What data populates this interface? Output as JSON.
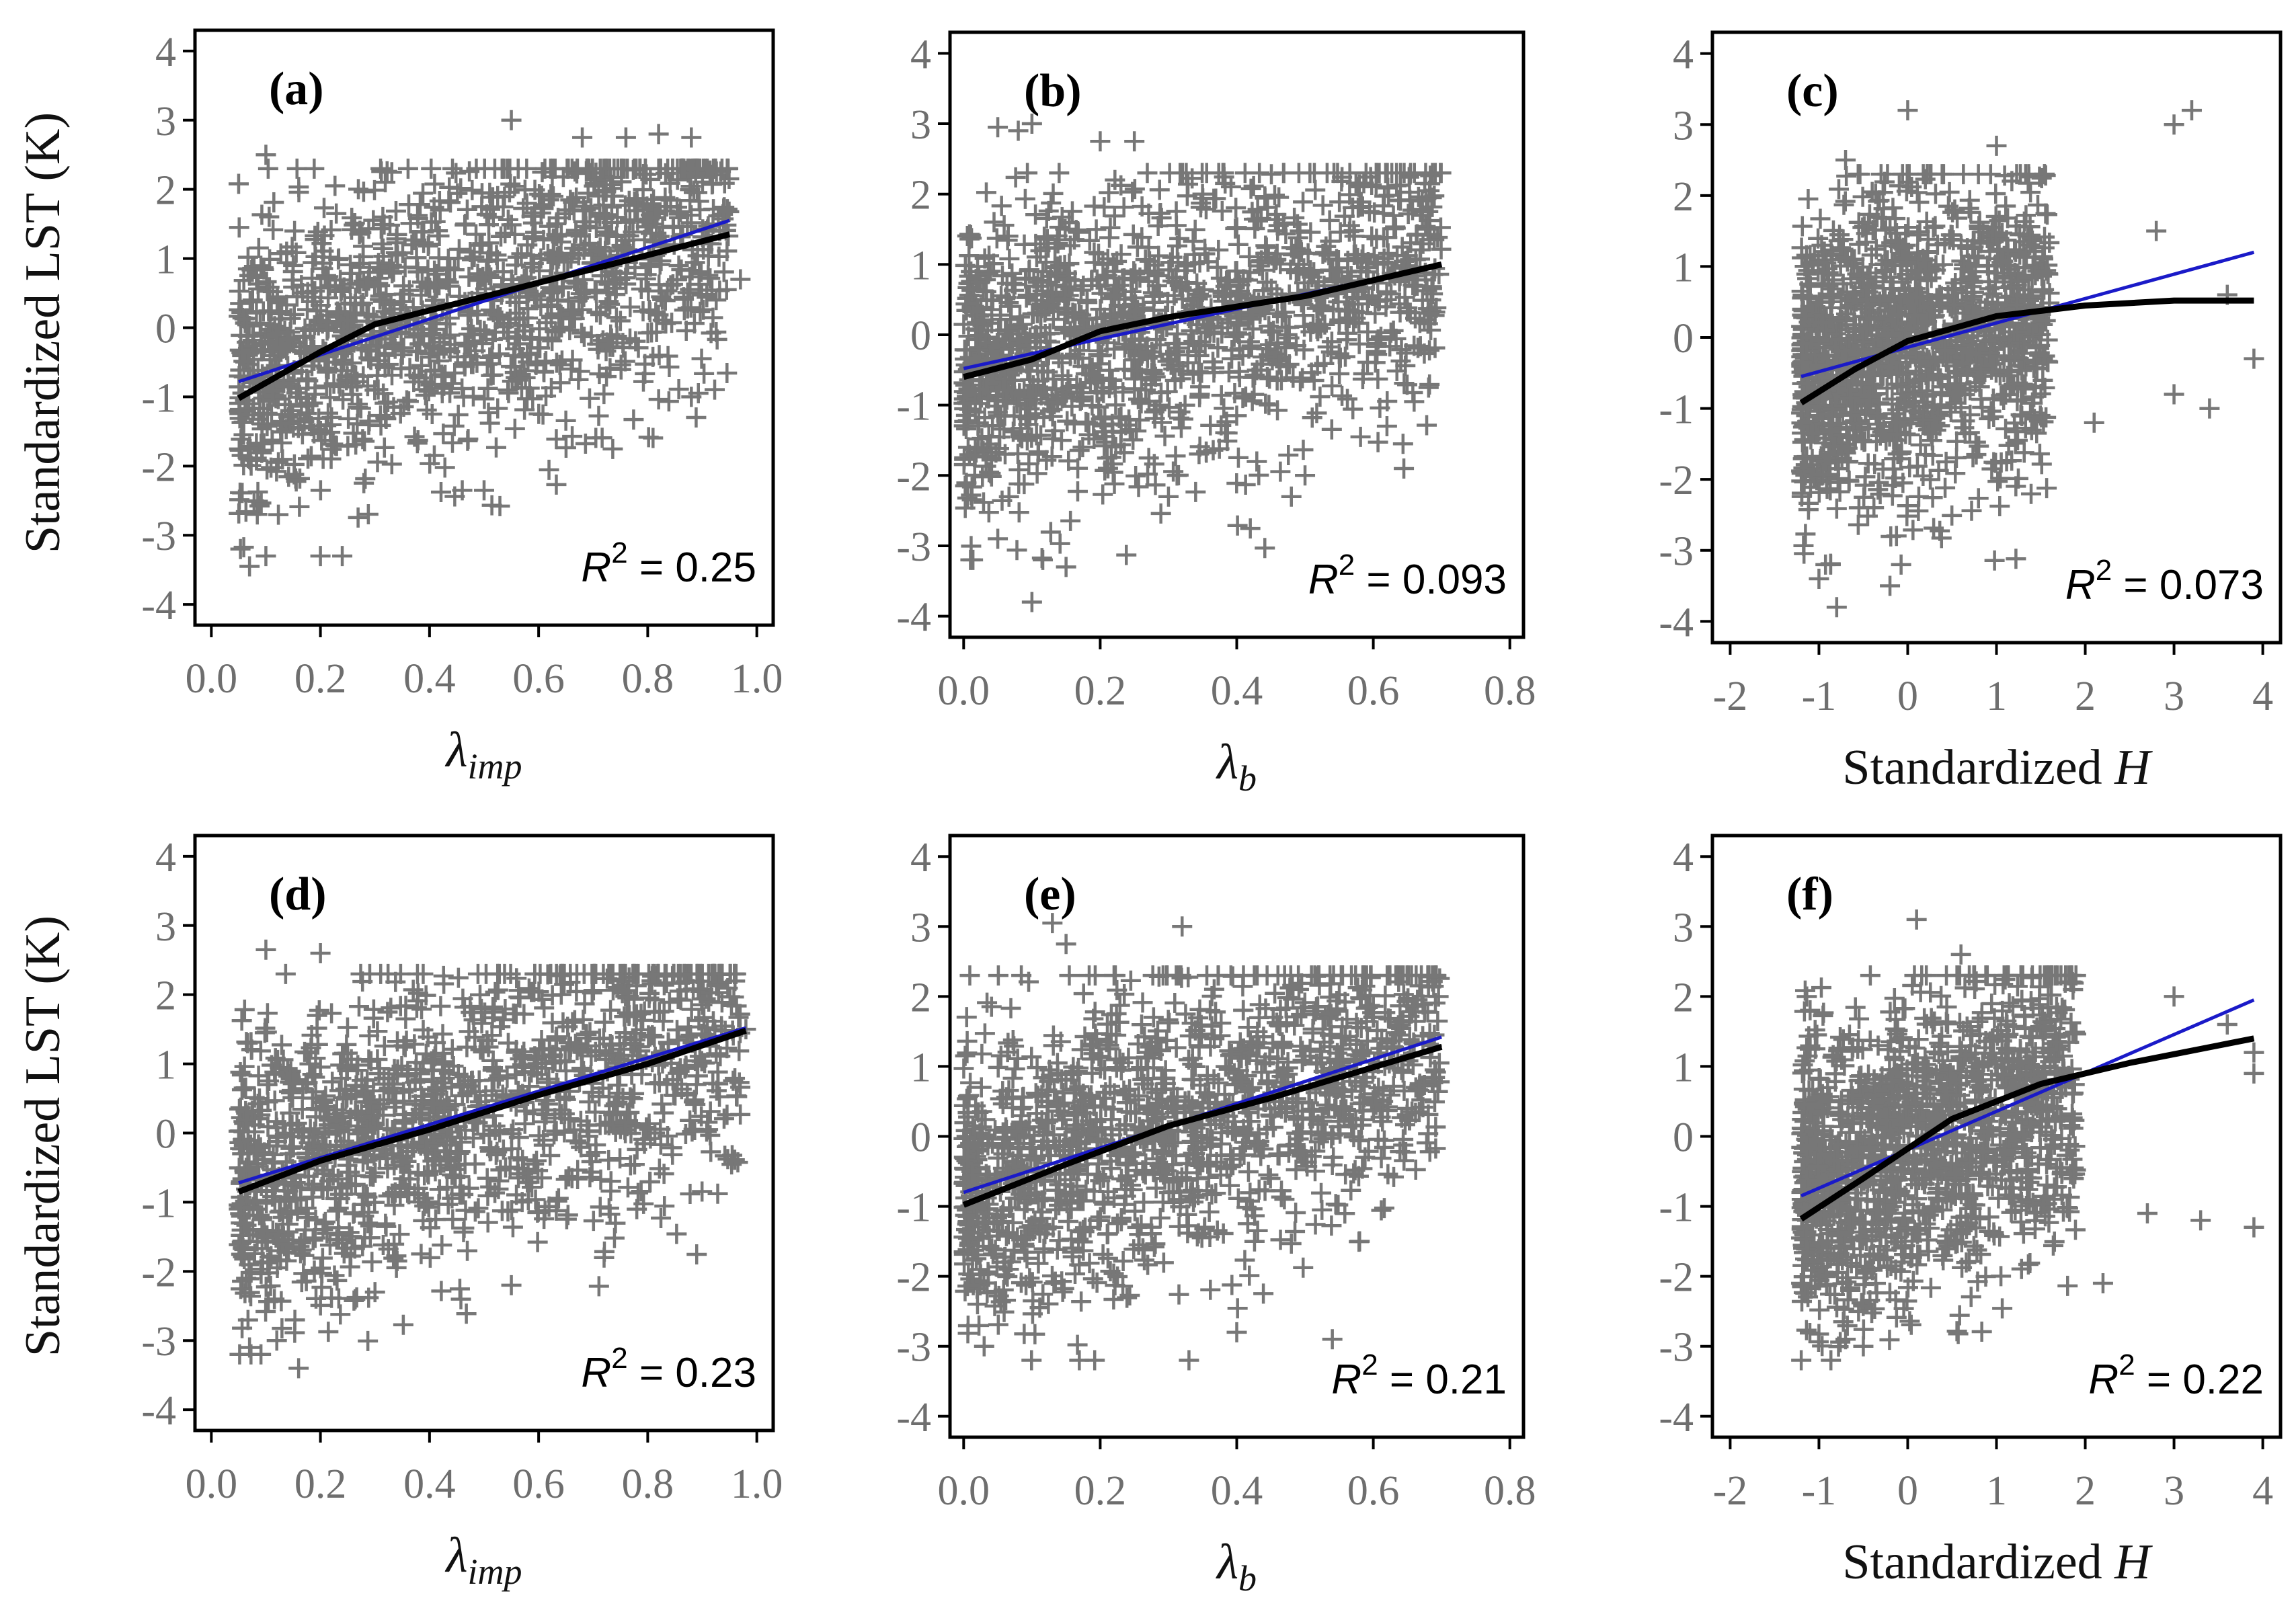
{
  "figure": {
    "ylabel_shared": "Standardized LST (K)",
    "colors": {
      "points": "#777777",
      "linear_fit": "#1a1ac8",
      "smooth_fit": "#000000",
      "axes": "#000000",
      "tick_text": "#6e6e6e"
    }
  },
  "chart_data": [
    {
      "panel": "(a)",
      "type": "scatter",
      "xlabel": "λimp",
      "ylabel": "Standardized LST (K)",
      "xlim": [
        -0.03,
        1.03
      ],
      "ylim": [
        -4.3,
        4.3
      ],
      "xticks": [
        "0.0",
        "0.2",
        "0.4",
        "0.6",
        "0.8",
        "1.0"
      ],
      "xtick_values": [
        0.0,
        0.2,
        0.4,
        0.6,
        0.8,
        1.0
      ],
      "yticks": [
        "-4",
        "-3",
        "-2",
        "-1",
        "0",
        "1",
        "2",
        "3",
        "4"
      ],
      "r2_label": "= 0.25",
      "r2": 0.25,
      "linear_fit": [
        [
          0.05,
          -0.78
        ],
        [
          0.95,
          1.55
        ]
      ],
      "smooth_fit": [
        [
          0.05,
          -1.02
        ],
        [
          0.2,
          -0.35
        ],
        [
          0.3,
          0.05
        ],
        [
          0.5,
          0.45
        ],
        [
          0.7,
          0.85
        ],
        [
          0.95,
          1.35
        ]
      ],
      "cloud": {
        "x_range": [
          0.05,
          0.95
        ],
        "y_spread": 1.05
      },
      "outliers": [
        [
          0.55,
          3.0
        ],
        [
          0.76,
          2.75
        ],
        [
          0.82,
          2.8
        ],
        [
          0.88,
          2.75
        ],
        [
          0.68,
          2.75
        ],
        [
          0.1,
          2.5
        ],
        [
          0.07,
          -3.45
        ],
        [
          0.1,
          -3.3
        ],
        [
          0.2,
          -3.3
        ],
        [
          0.24,
          -3.3
        ],
        [
          0.46,
          -2.35
        ],
        [
          0.5,
          -2.35
        ],
        [
          0.97,
          0.7
        ],
        [
          0.88,
          -1.0
        ]
      ]
    },
    {
      "panel": "(b)",
      "type": "scatter",
      "xlabel": "λb",
      "ylabel": "",
      "xlim": [
        -0.02,
        0.82
      ],
      "ylim": [
        -4.3,
        4.3
      ],
      "xticks": [
        "0.0",
        "0.2",
        "0.4",
        "0.6",
        "0.8"
      ],
      "xtick_values": [
        0.0,
        0.2,
        0.4,
        0.6,
        0.8
      ],
      "yticks": [
        "-4",
        "-3",
        "-2",
        "-1",
        "0",
        "1",
        "2",
        "3",
        "4"
      ],
      "r2_label": "= 0.093",
      "r2": 0.093,
      "linear_fit": [
        [
          0.0,
          -0.48
        ],
        [
          0.7,
          1.0
        ]
      ],
      "smooth_fit": [
        [
          0.0,
          -0.6
        ],
        [
          0.1,
          -0.35
        ],
        [
          0.2,
          0.05
        ],
        [
          0.3,
          0.25
        ],
        [
          0.5,
          0.55
        ],
        [
          0.7,
          1.0
        ]
      ],
      "cloud": {
        "x_range": [
          0.0,
          0.7
        ],
        "y_spread": 1.05
      },
      "outliers": [
        [
          0.05,
          2.95
        ],
        [
          0.08,
          2.9
        ],
        [
          0.1,
          3.0
        ],
        [
          0.2,
          2.75
        ],
        [
          0.25,
          2.75
        ],
        [
          0.1,
          -3.8
        ],
        [
          0.15,
          -3.3
        ],
        [
          0.05,
          -2.9
        ],
        [
          0.62,
          -1.3
        ],
        [
          0.5,
          -2.0
        ],
        [
          0.48,
          -2.3
        ],
        [
          0.68,
          1.5
        ],
        [
          0.3,
          -2.3
        ]
      ]
    },
    {
      "panel": "(c)",
      "type": "scatter",
      "xlabel": "Standardized H",
      "ylabel": "",
      "xlim": [
        -2.2,
        4.2
      ],
      "ylim": [
        -4.3,
        4.3
      ],
      "xticks": [
        "-2",
        "-1",
        "0",
        "1",
        "2",
        "3",
        "4"
      ],
      "xtick_values": [
        -2,
        -1,
        0,
        1,
        2,
        3,
        4
      ],
      "yticks": [
        "-4",
        "-3",
        "-2",
        "-1",
        "0",
        "1",
        "2",
        "3",
        "4"
      ],
      "r2_label": "= 0.073",
      "r2": 0.073,
      "linear_fit": [
        [
          -1.2,
          -0.55
        ],
        [
          3.9,
          1.2
        ]
      ],
      "smooth_fit": [
        [
          -1.2,
          -0.92
        ],
        [
          -0.6,
          -0.45
        ],
        [
          0.0,
          -0.05
        ],
        [
          1.0,
          0.3
        ],
        [
          2.0,
          0.45
        ],
        [
          3.0,
          0.52
        ],
        [
          3.9,
          0.52
        ]
      ],
      "cloud": {
        "x_range": [
          -1.2,
          1.6
        ],
        "y_spread": 1.1
      },
      "outliers": [
        [
          3.0,
          3.0
        ],
        [
          3.2,
          3.2
        ],
        [
          0.0,
          3.2
        ],
        [
          -0.7,
          2.5
        ],
        [
          1.0,
          2.7
        ],
        [
          -0.2,
          -3.5
        ],
        [
          -0.8,
          -3.8
        ],
        [
          -1.0,
          -3.4
        ],
        [
          3.0,
          -0.8
        ],
        [
          3.4,
          -1.0
        ],
        [
          3.9,
          -0.3
        ],
        [
          2.8,
          1.5
        ],
        [
          3.6,
          0.6
        ],
        [
          2.1,
          -1.2
        ]
      ]
    },
    {
      "panel": "(d)",
      "type": "scatter",
      "xlabel": "λimp",
      "ylabel": "Standardized LST (K)",
      "xlim": [
        -0.03,
        1.03
      ],
      "ylim": [
        -4.3,
        4.3
      ],
      "xticks": [
        "0.0",
        "0.2",
        "0.4",
        "0.6",
        "0.8",
        "1.0"
      ],
      "xtick_values": [
        0.0,
        0.2,
        0.4,
        0.6,
        0.8,
        1.0
      ],
      "yticks": [
        "-4",
        "-3",
        "-2",
        "-1",
        "0",
        "1",
        "2",
        "3",
        "4"
      ],
      "r2_label": "= 0.23",
      "r2": 0.23,
      "linear_fit": [
        [
          0.05,
          -0.72
        ],
        [
          0.98,
          1.52
        ]
      ],
      "smooth_fit": [
        [
          0.05,
          -0.85
        ],
        [
          0.2,
          -0.4
        ],
        [
          0.4,
          0.05
        ],
        [
          0.6,
          0.55
        ],
        [
          0.8,
          1.0
        ],
        [
          0.98,
          1.48
        ]
      ],
      "cloud": {
        "x_range": [
          0.05,
          0.97
        ],
        "y_spread": 1.05
      },
      "outliers": [
        [
          0.1,
          2.65
        ],
        [
          0.2,
          2.6
        ],
        [
          0.16,
          -3.4
        ],
        [
          0.07,
          -3.1
        ],
        [
          0.12,
          -3.0
        ],
        [
          0.3,
          -2.3
        ],
        [
          0.55,
          -2.2
        ],
        [
          0.72,
          -1.8
        ],
        [
          0.78,
          -1.1
        ],
        [
          0.86,
          2.3
        ],
        [
          0.98,
          1.5
        ]
      ]
    },
    {
      "panel": "(e)",
      "type": "scatter",
      "xlabel": "λb",
      "ylabel": "",
      "xlim": [
        -0.02,
        0.82
      ],
      "ylim": [
        -4.3,
        4.3
      ],
      "xticks": [
        "0.0",
        "0.2",
        "0.4",
        "0.6",
        "0.8"
      ],
      "xtick_values": [
        0.0,
        0.2,
        0.4,
        0.6,
        0.8
      ],
      "yticks": [
        "-4",
        "-3",
        "-2",
        "-1",
        "0",
        "1",
        "2",
        "3",
        "4"
      ],
      "r2_label": "= 0.21",
      "r2": 0.21,
      "linear_fit": [
        [
          0.0,
          -0.8
        ],
        [
          0.7,
          1.42
        ]
      ],
      "smooth_fit": [
        [
          0.0,
          -0.98
        ],
        [
          0.15,
          -0.4
        ],
        [
          0.3,
          0.15
        ],
        [
          0.45,
          0.55
        ],
        [
          0.7,
          1.28
        ]
      ],
      "cloud": {
        "x_range": [
          0.0,
          0.7
        ],
        "y_spread": 1.05
      },
      "outliers": [
        [
          0.13,
          3.05
        ],
        [
          0.32,
          3.0
        ],
        [
          0.15,
          2.75
        ],
        [
          0.4,
          -2.8
        ],
        [
          0.54,
          -2.9
        ],
        [
          0.33,
          -3.2
        ],
        [
          0.58,
          -1.5
        ],
        [
          0.69,
          0.95
        ],
        [
          0.03,
          -3.0
        ],
        [
          0.6,
          1.7
        ]
      ]
    },
    {
      "panel": "(f)",
      "type": "scatter",
      "xlabel": "Standardized H",
      "ylabel": "",
      "xlim": [
        -2.2,
        4.2
      ],
      "ylim": [
        -4.3,
        4.3
      ],
      "xticks": [
        "-2",
        "-1",
        "0",
        "1",
        "2",
        "3",
        "4"
      ],
      "xtick_values": [
        -2,
        -1,
        0,
        1,
        2,
        3,
        4
      ],
      "yticks": [
        "-4",
        "-3",
        "-2",
        "-1",
        "0",
        "1",
        "2",
        "3",
        "4"
      ],
      "r2_label": "= 0.22",
      "r2": 0.22,
      "linear_fit": [
        [
          -1.2,
          -0.85
        ],
        [
          3.9,
          1.95
        ]
      ],
      "smooth_fit": [
        [
          -1.2,
          -1.18
        ],
        [
          -0.5,
          -0.6
        ],
        [
          0.5,
          0.25
        ],
        [
          1.5,
          0.75
        ],
        [
          2.5,
          1.05
        ],
        [
          3.9,
          1.4
        ]
      ],
      "cloud": {
        "x_range": [
          -1.2,
          1.9
        ],
        "y_spread": 1.05
      },
      "outliers": [
        [
          0.1,
          3.1
        ],
        [
          0.6,
          2.6
        ],
        [
          3.0,
          2.0
        ],
        [
          3.9,
          1.2
        ],
        [
          3.9,
          0.9
        ],
        [
          3.9,
          -1.3
        ],
        [
          3.3,
          -1.2
        ],
        [
          2.2,
          -2.1
        ],
        [
          2.7,
          -1.1
        ],
        [
          -0.7,
          -2.9
        ],
        [
          -0.5,
          -3.0
        ],
        [
          3.6,
          1.6
        ],
        [
          -1.2,
          -2.1
        ]
      ]
    }
  ]
}
